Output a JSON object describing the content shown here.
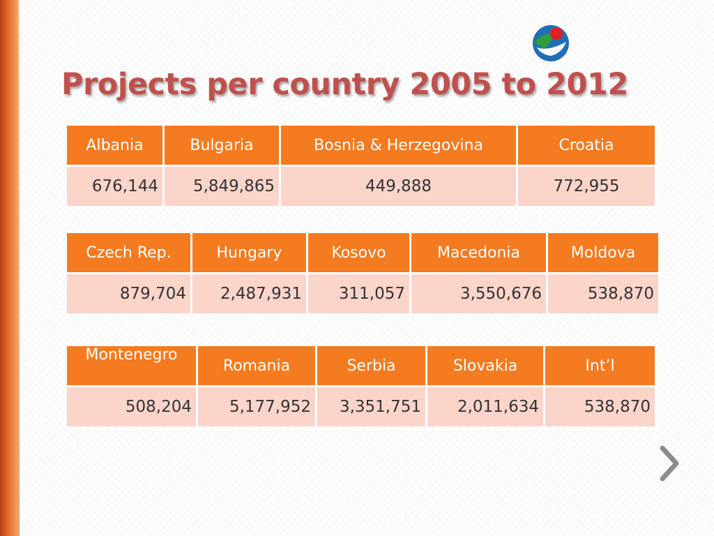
{
  "title": "Projects per country 2005 to 2012",
  "logo": {
    "icon": "organization-logo-icon"
  },
  "nav": {
    "next_icon": "chevron-right-icon"
  },
  "tables": [
    {
      "headers": [
        "Albania",
        "Bulgaria",
        "Bosnia & Herzegovina",
        "Croatia"
      ],
      "values": [
        "676,144",
        "5,849,865",
        "449,888",
        "772,955"
      ]
    },
    {
      "headers": [
        "Czech Rep.",
        "Hungary",
        "Kosovo",
        "Macedonia",
        "Moldova"
      ],
      "values": [
        "879,704",
        "2,487,931",
        "311,057",
        "3,550,676",
        "538,870"
      ]
    },
    {
      "headers": [
        "Montenegro",
        "Romania",
        "Serbia",
        "Slovakia",
        "Int’l"
      ],
      "values": [
        "508,204",
        "5,177,952",
        "3,351,751",
        "2,011,634",
        "538,870"
      ]
    }
  ],
  "colors": {
    "title": "#c0504d",
    "header_bg": "#f47b20",
    "cell_bg": "#fbd4ca",
    "accent_bar": "#e46c2a"
  }
}
